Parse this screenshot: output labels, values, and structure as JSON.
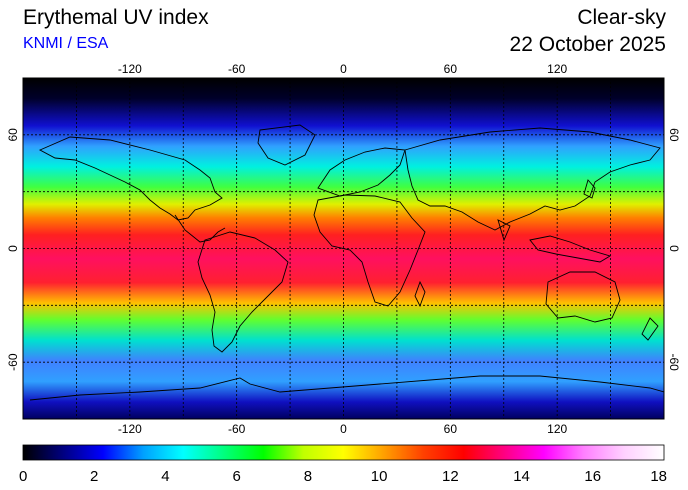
{
  "header": {
    "title": "Erythemal UV index",
    "credit": "KNMI / ESA",
    "sky_condition": "Clear-sky",
    "date": "22 October 2025"
  },
  "map": {
    "longitude_ticks": [
      "-120",
      "-60",
      "0",
      "60",
      "120"
    ],
    "latitude_ticks": [
      "60",
      "0",
      "-60"
    ],
    "graticule_longitudes": [
      -150,
      -120,
      -90,
      -60,
      -30,
      0,
      30,
      60,
      90,
      120,
      150
    ],
    "graticule_latitudes": [
      60,
      30,
      0,
      -30,
      -60
    ],
    "extent": {
      "lon": [
        -180,
        180
      ],
      "lat": [
        -90,
        90
      ]
    }
  },
  "colorbar": {
    "labels": [
      "0",
      "2",
      "4",
      "6",
      "8",
      "10",
      "12",
      "14",
      "16",
      "18"
    ],
    "range": [
      0,
      18
    ],
    "colors": [
      "#000000",
      "#000080",
      "#0000ff",
      "#00a0ff",
      "#00ffff",
      "#00ff80",
      "#00ff00",
      "#c0ff00",
      "#ffff00",
      "#ffa000",
      "#ff4000",
      "#ff0000",
      "#ff0080",
      "#ff00ff",
      "#ff80ff",
      "#ffd0ff",
      "#ffffff"
    ]
  }
}
